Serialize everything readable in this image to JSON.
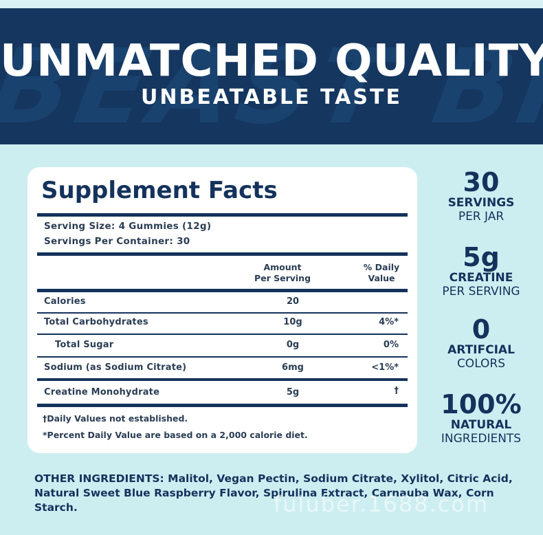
{
  "banner": {
    "background_text": "BEAST BITE",
    "headline": "UNMATCHED QUALITY.",
    "subheadline": "UNBEATABLE TASTE"
  },
  "facts": {
    "title": "Supplement Facts",
    "serving_size": "Serving Size: 4 Gummies (12g)",
    "servings_per_container": "Servings Per Container: 30",
    "col_amount": "Amount\nPer Serving",
    "col_amount_line1": "Amount",
    "col_amount_line2": "Per Serving",
    "col_dv_line1": "% Daily",
    "col_dv_line2": "Value",
    "rows": [
      {
        "label": "Calories",
        "amount": "20",
        "dv": ""
      },
      {
        "label": "Total Carbohydrates",
        "amount": "10g",
        "dv": "4%*"
      },
      {
        "label": "Total Sugar",
        "amount": "0g",
        "dv": "0%"
      },
      {
        "label": "Sodium (as Sodium Citrate)",
        "amount": "6mg",
        "dv": "<1%*"
      },
      {
        "label": "Creatine Monohydrate",
        "amount": "5g",
        "dv": "†"
      }
    ],
    "footnote_1": "†Daily Values not established.",
    "footnote_2": "*Percent Daily Value are based on a 2,000 calorie diet."
  },
  "stats": [
    {
      "number": "30",
      "main": "SERVINGS",
      "sub": "PER JAR"
    },
    {
      "number": "5g",
      "main": "CREATINE",
      "sub": "PER SERVING"
    },
    {
      "number": "0",
      "main": "ARTIFCIAL",
      "sub": "COLORS"
    },
    {
      "number": "100%",
      "main": "NATURAL",
      "sub": "INGREDIENTS"
    }
  ],
  "ingredients": "OTHER INGREDIENTS: Malitol, Vegan Pectin, Sodium Citrate, Xylitol, Citric Acid, Natural Sweet Blue Raspberry Flavor, Spirulina Extract, Carnauba Wax, Corn Starch.",
  "watermark": "fuluber.1688.com",
  "colors": {
    "navy": "#14365f",
    "background": "#cdeef1",
    "card": "#ffffff"
  }
}
